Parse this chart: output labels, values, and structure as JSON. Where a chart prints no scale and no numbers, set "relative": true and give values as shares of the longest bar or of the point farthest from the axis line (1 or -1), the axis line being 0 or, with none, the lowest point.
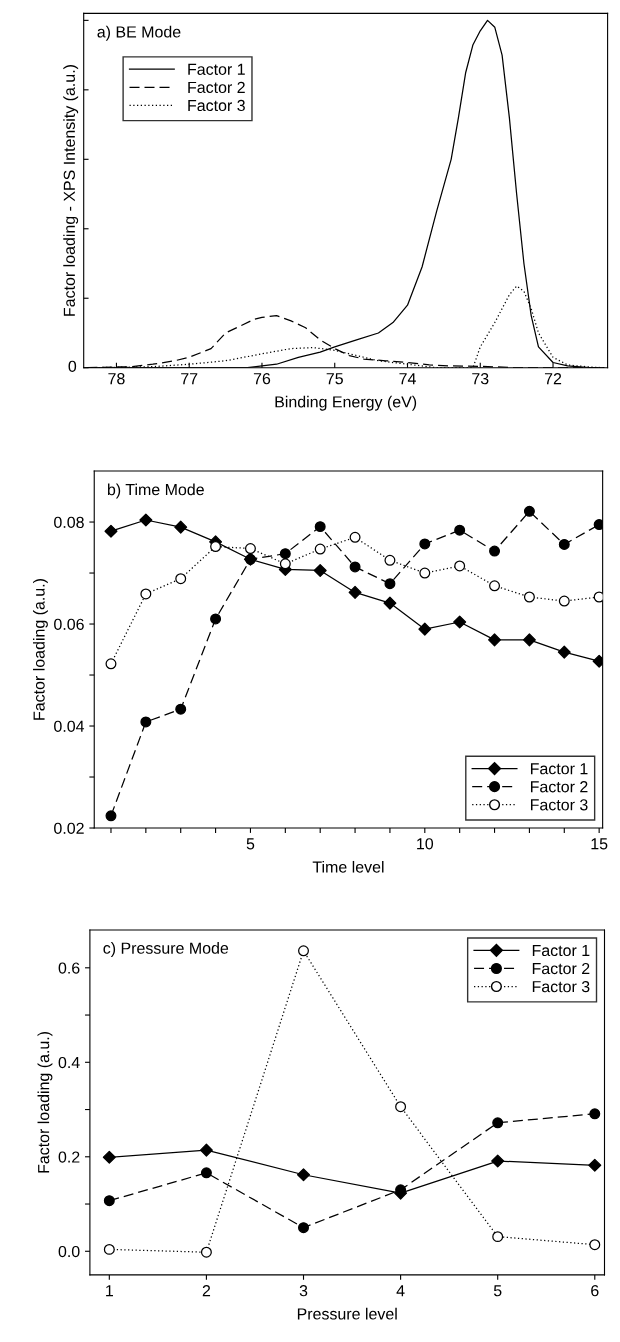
{
  "chart_data": [
    {
      "type": "line",
      "title": "a) BE Mode",
      "xlabel": "Binding Energy (eV)",
      "ylabel": "Factor loading - XPS Intensity (a.u.)",
      "relative": true,
      "annotations": [
        "0"
      ],
      "xlim": [
        78.45,
        71.25
      ],
      "xticks": [
        78,
        77,
        76,
        75,
        74,
        73,
        72
      ],
      "legend": "top left",
      "marker": "none",
      "series": [
        {
          "name": "Factor 1",
          "color": "#000000",
          "line_style": "solid",
          "x": [
            78.4,
            77.5,
            76.6,
            76.2,
            76.0,
            75.8,
            75.5,
            75.2,
            75.0,
            74.7,
            74.4,
            74.2,
            74.0,
            73.8,
            73.6,
            73.4,
            73.3,
            73.2,
            73.1,
            73.0,
            72.9,
            72.8,
            72.7,
            72.6,
            72.5,
            72.4,
            72.3,
            72.2,
            72.0,
            71.8,
            71.5,
            71.3
          ],
          "values": [
            0,
            0,
            0,
            0,
            0.005,
            0.01,
            0.03,
            0.045,
            0.06,
            0.08,
            0.1,
            0.13,
            0.18,
            0.29,
            0.45,
            0.6,
            0.72,
            0.85,
            0.93,
            0.97,
            1.0,
            0.98,
            0.9,
            0.72,
            0.5,
            0.3,
            0.15,
            0.06,
            0.015,
            0.005,
            0,
            0
          ]
        },
        {
          "name": "Factor 2",
          "color": "#000000",
          "line_style": "dashed",
          "x": [
            78.4,
            77.8,
            77.5,
            77.2,
            77.0,
            76.7,
            76.5,
            76.3,
            76.1,
            76.0,
            75.8,
            75.6,
            75.4,
            75.2,
            75.0,
            74.8,
            74.6,
            74.3,
            74.0,
            73.7,
            73.4,
            73.0,
            72.5,
            71.3
          ],
          "values": [
            0,
            0.003,
            0.01,
            0.02,
            0.03,
            0.055,
            0.1,
            0.12,
            0.14,
            0.145,
            0.15,
            0.135,
            0.115,
            0.08,
            0.055,
            0.035,
            0.025,
            0.02,
            0.015,
            0.008,
            0.005,
            0.004,
            0,
            0
          ]
        },
        {
          "name": "Factor 3",
          "color": "#000000",
          "line_style": "dotted",
          "x": [
            78.4,
            77.5,
            77.0,
            76.5,
            76.0,
            75.6,
            75.3,
            75.0,
            74.7,
            74.4,
            74.0,
            73.6,
            73.4,
            73.1,
            73.0,
            72.8,
            72.6,
            72.5,
            72.4,
            72.3,
            72.2,
            72.0,
            71.8,
            71.5,
            71.3
          ],
          "values": [
            0,
            0.003,
            0.01,
            0.02,
            0.04,
            0.055,
            0.058,
            0.05,
            0.035,
            0.02,
            0.01,
            0,
            0,
            0,
            0.06,
            0.13,
            0.21,
            0.235,
            0.22,
            0.17,
            0.1,
            0.03,
            0.008,
            0.002,
            0
          ]
        }
      ]
    },
    {
      "type": "line",
      "title": "b) Time Mode",
      "xlabel": "Time level",
      "ylabel": "Factor loading (a.u.)",
      "xlim": [
        0.52,
        15.1
      ],
      "ylim": [
        0.02,
        0.09
      ],
      "xticks": [
        {
          "value": 1,
          "label": null
        },
        {
          "value": 2,
          "label": null
        },
        {
          "value": 3,
          "label": null
        },
        {
          "value": 4,
          "label": null
        },
        5,
        {
          "value": 6,
          "label": null
        },
        {
          "value": 7,
          "label": null
        },
        {
          "value": 8,
          "label": null
        },
        {
          "value": 9,
          "label": null
        },
        10,
        {
          "value": 11,
          "label": null
        },
        {
          "value": 12,
          "label": null
        },
        {
          "value": 13,
          "label": null
        },
        {
          "value": 14,
          "label": null
        },
        15
      ],
      "yticks": [
        0.02,
        {
          "value": 0.03,
          "label": null
        },
        0.04,
        {
          "value": 0.05,
          "label": null
        },
        0.06,
        {
          "value": 0.07,
          "label": null
        },
        0.08
      ],
      "legend": "bottom right",
      "x": [
        1,
        2,
        3,
        4,
        5,
        6,
        7,
        8,
        9,
        10,
        11,
        12,
        13,
        14,
        15
      ],
      "series": [
        {
          "name": "Factor 1",
          "color": "#000000",
          "line_style": "solid",
          "marker": "diamond",
          "values": [
            0.0782,
            0.0804,
            0.079,
            0.0761,
            0.0727,
            0.0707,
            0.0705,
            0.0662,
            0.0641,
            0.059,
            0.0604,
            0.0569,
            0.0569,
            0.0545,
            0.0527
          ]
        },
        {
          "name": "Factor 2",
          "color": "#000000",
          "line_style": "dashed",
          "marker": "circle",
          "values": [
            0.0224,
            0.0408,
            0.0433,
            0.061,
            0.0727,
            0.0738,
            0.0791,
            0.0712,
            0.0679,
            0.0757,
            0.0784,
            0.0743,
            0.0821,
            0.0756,
            0.0795
          ]
        },
        {
          "name": "Factor 3",
          "color": "#000000",
          "line_style": "dotted",
          "marker": "circle",
          "colors": [
            "#ffffff",
            "#ffffff",
            "#ffffff",
            "#ffffff",
            "#ffffff",
            "#ffffff",
            "#ffffff",
            "#ffffff",
            "#ffffff",
            "#ffffff",
            "#ffffff",
            "#ffffff",
            "#ffffff",
            "#ffffff",
            "#ffffff"
          ],
          "values": [
            0.0522,
            0.0659,
            0.0689,
            0.0752,
            0.0748,
            0.0718,
            0.0747,
            0.077,
            0.0725,
            0.07,
            0.0714,
            0.0675,
            0.0653,
            0.0645,
            0.0653
          ]
        }
      ]
    },
    {
      "type": "line",
      "title": "c) Pressure Mode",
      "xlabel": "Pressure level",
      "ylabel": "Factor loading (a.u.)",
      "xlim": [
        0.8,
        6.1
      ],
      "ylim": [
        -0.05,
        0.68
      ],
      "xticks": [
        1,
        2,
        3,
        4,
        5,
        6
      ],
      "yticks": [
        {
          "value": 0,
          "label": "0.0"
        },
        {
          "value": 0.1,
          "label": null
        },
        0.2,
        {
          "value": 0.3,
          "label": null
        },
        0.4,
        {
          "value": 0.5,
          "label": null
        },
        0.6
      ],
      "legend": "top right",
      "x": [
        1,
        2,
        3,
        4,
        5,
        6
      ],
      "series": [
        {
          "name": "Factor 1",
          "color": "#000000",
          "line_style": "solid",
          "marker": "diamond",
          "values": [
            0.199,
            0.214,
            0.162,
            0.123,
            0.191,
            0.182
          ]
        },
        {
          "name": "Factor 2",
          "color": "#000000",
          "line_style": "dashed",
          "marker": "circle",
          "values": [
            0.107,
            0.166,
            0.05,
            0.13,
            0.272,
            0.291
          ]
        },
        {
          "name": "Factor 3",
          "color": "#000000",
          "line_style": "dotted",
          "marker": "circle",
          "colors": [
            "#ffffff",
            "#ffffff",
            "#ffffff",
            "#ffffff",
            "#ffffff",
            "#ffffff"
          ],
          "values": [
            0.004,
            -0.002,
            0.636,
            0.306,
            0.031,
            0.014
          ]
        }
      ]
    }
  ]
}
